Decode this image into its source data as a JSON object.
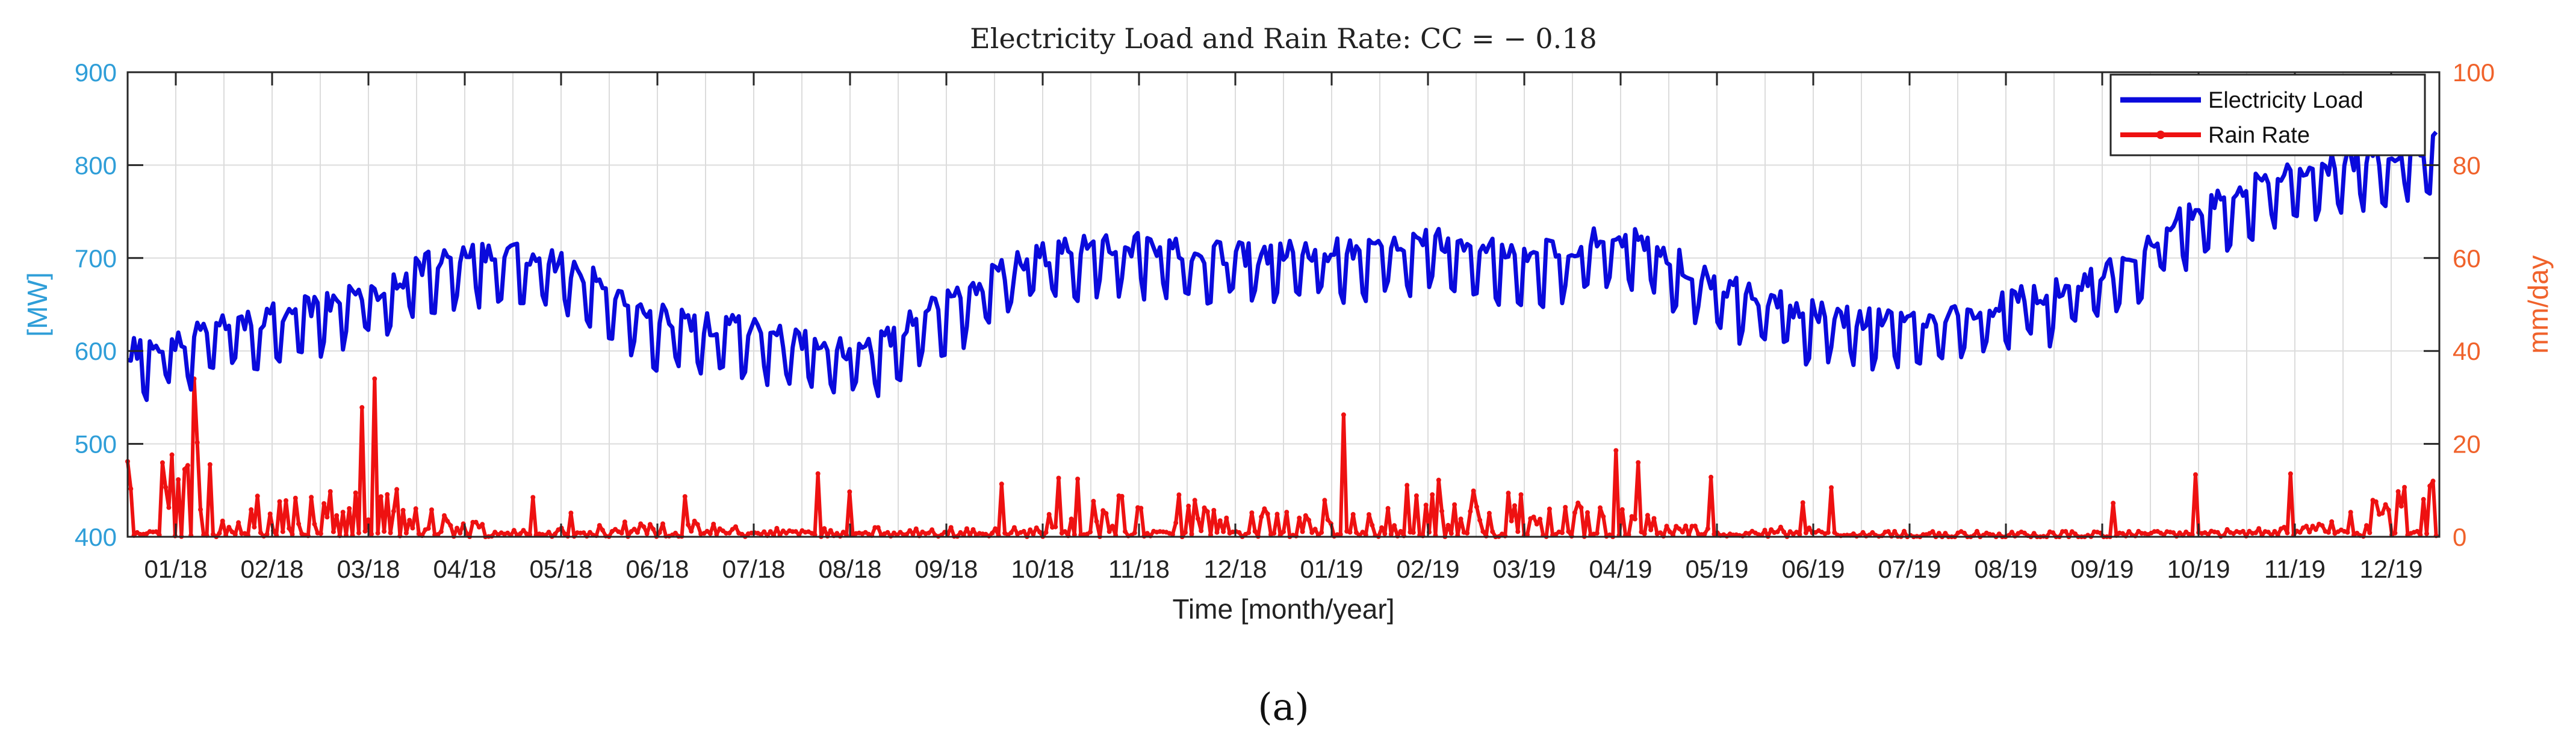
{
  "chart_data": {
    "type": "line",
    "title": "Electricity Load and Rain Rate:  CC = − 0.18",
    "xlabel": "Time [month/year]",
    "ylabel_left": "[MW]",
    "ylabel_right": "mm/day",
    "ylim_left": [
      400,
      900
    ],
    "ylim_right": [
      0,
      100
    ],
    "yticks_left": [
      "400",
      "500",
      "600",
      "700",
      "800",
      "900"
    ],
    "yticks_right": [
      "0",
      "20",
      "40",
      "60",
      "80",
      "100"
    ],
    "grid": true,
    "legend_position": "top-right",
    "categories": [
      "01/18",
      "02/18",
      "03/18",
      "04/18",
      "05/18",
      "06/18",
      "07/18",
      "08/18",
      "09/18",
      "10/18",
      "11/18",
      "12/18",
      "01/19",
      "02/19",
      "03/19",
      "04/19",
      "05/19",
      "06/19",
      "07/19",
      "08/19",
      "09/19",
      "10/19",
      "11/19",
      "12/19"
    ],
    "series": [
      {
        "name": "Electricity Load",
        "axis": "left",
        "color": "#0a0adc",
        "x": [
          0,
          1,
          2,
          3,
          4,
          5,
          6,
          7,
          8,
          9,
          10,
          11,
          12,
          13,
          14,
          15,
          16,
          17,
          18,
          19,
          20,
          21,
          22,
          23
        ],
        "values": [
          600,
          625,
          650,
          690,
          680,
          625,
          610,
          590,
          640,
          690,
          700,
          690,
          695,
          705,
          690,
          710,
          660,
          630,
          620,
          640,
          670,
          740,
          780,
          800
        ]
      },
      {
        "name": "Rain Rate",
        "axis": "right",
        "color": "#ee1111",
        "x": [
          0,
          1,
          2,
          3,
          4,
          5,
          6,
          7,
          8,
          9,
          10,
          11,
          12,
          13,
          14,
          15,
          16,
          17,
          18,
          19,
          20,
          21,
          22,
          23
        ],
        "values": [
          12,
          4,
          6,
          2,
          1,
          2,
          1,
          1,
          1,
          1,
          6,
          3,
          4,
          6,
          5,
          3,
          1,
          1,
          0,
          0,
          0,
          1,
          1,
          5
        ]
      }
    ]
  },
  "caption": "(a)"
}
